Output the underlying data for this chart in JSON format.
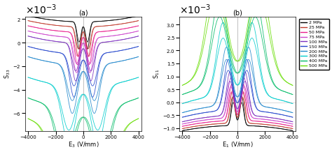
{
  "title_a": "(a)",
  "title_b": "(b)",
  "xlabel_a": "E$_3$ (V/mm)",
  "xlabel_b": "E$_1$ (V/mm)",
  "ylabel_a": "S$_{33}$",
  "ylabel_b": "S$_{11}$",
  "ylim_a": [
    -0.0075,
    0.0022
  ],
  "ylim_b": [
    -0.0011,
    0.0033
  ],
  "xlim": [
    -4200,
    4200
  ],
  "xticks": [
    -4000,
    -2000,
    0,
    2000,
    4000
  ],
  "legend_labels": [
    "2 MPa",
    "25 MPa",
    "50 MPa",
    "75 MPa",
    "100 MPa",
    "150 MPa",
    "200 MPa",
    "300 MPa",
    "400 MPa",
    "500 MPa"
  ],
  "colors": [
    "#000000",
    "#c0392b",
    "#e91e8c",
    "#cc44cc",
    "#7b2fbe",
    "#2244cc",
    "#2288cc",
    "#00cccc",
    "#00bb66",
    "#66dd00"
  ],
  "pressures_mpa": [
    2,
    25,
    50,
    75,
    100,
    150,
    200,
    300,
    400,
    500
  ],
  "E_range": 4000,
  "num_points": 400
}
